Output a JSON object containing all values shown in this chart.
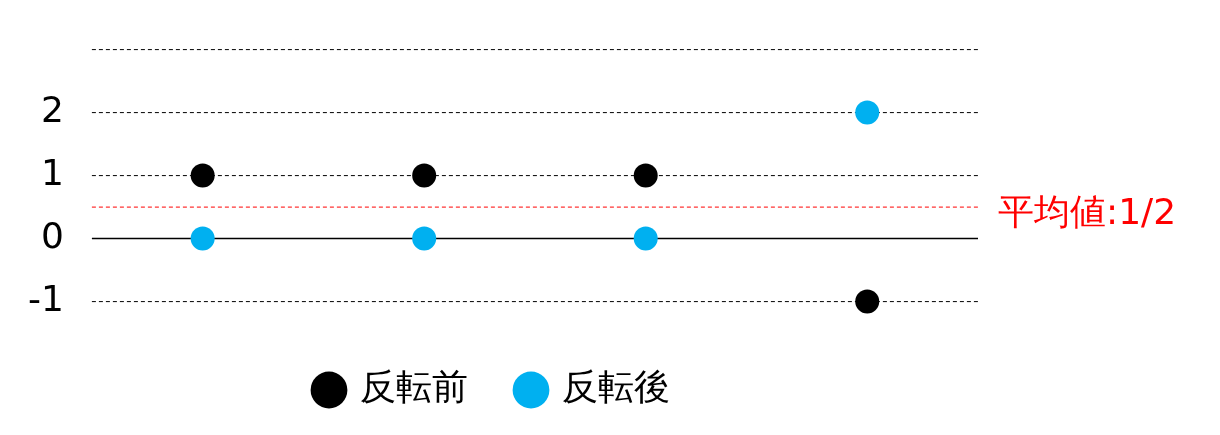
{
  "chart_data": {
    "type": "scatter",
    "categories": [
      null,
      null,
      null,
      null
    ],
    "series": [
      {
        "name": "反転前",
        "color": "#000000",
        "values": [
          1,
          1,
          1,
          -1
        ]
      },
      {
        "name": "反転後",
        "color": "#00b0f0",
        "values": [
          0,
          0,
          0,
          2
        ]
      }
    ],
    "ylim": [
      -1,
      3
    ],
    "yticks": [
      -1,
      0,
      1,
      2,
      {
        "value": 3,
        "label": null
      }
    ],
    "grid": "y",
    "legend": "bottom",
    "marker": "circle",
    "ref_lines": [
      {
        "axis": "y",
        "value": 0.5,
        "label": "平均値:1/2",
        "color": "#ff0000",
        "line_style": "dashed"
      }
    ]
  }
}
